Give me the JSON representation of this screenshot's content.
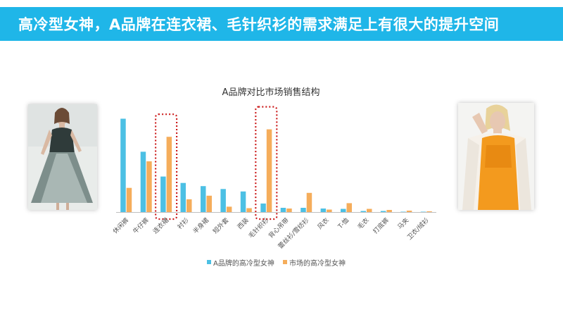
{
  "banner": {
    "title": "高冷型女神，A品牌在连衣裙、毛针织衫的需求满足上有很大的提升空间",
    "color": "#1fb6e8"
  },
  "images": {
    "left": "woman-in-grey-chiffon-dress-photo",
    "right": "woman-in-orange-top-and-white-cardigan-photo"
  },
  "chart_data": {
    "type": "bar",
    "title": "A品牌对比市场销售结构",
    "categories": [
      "休闲裤",
      "牛仔裤",
      "连衣裙",
      "衬衫",
      "半身裙",
      "短外套",
      "西装",
      "毛针织衫",
      "背心吊带",
      "蕾丝衫/雪纺衫",
      "风衣",
      "T-恤",
      "毛衣",
      "打底裤",
      "马夹",
      "卫衣/绒衫"
    ],
    "series": [
      {
        "name": "A品牌的高冷型女神",
        "color": "#4cc0e4",
        "values": [
          0.263,
          0.17,
          0.1,
          0.082,
          0.073,
          0.065,
          0.058,
          0.024,
          0.012,
          0.012,
          0.01,
          0.009,
          0.003,
          0.003,
          0.001,
          0.001
        ]
      },
      {
        "name": "市场的高冷型女神",
        "color": "#f5ad5b",
        "values": [
          0.068,
          0.143,
          0.212,
          0.036,
          0.046,
          0.015,
          0.011,
          0.233,
          0.01,
          0.054,
          0.007,
          0.025,
          0.009,
          0.006,
          0.004,
          0.002
        ]
      }
    ],
    "highlighted_categories": [
      "连衣裙",
      "毛针织衫"
    ],
    "highlight_color": "#cc1e1e",
    "ylim": [
      0,
      0.27
    ],
    "grid": false,
    "legend": "bottom"
  }
}
